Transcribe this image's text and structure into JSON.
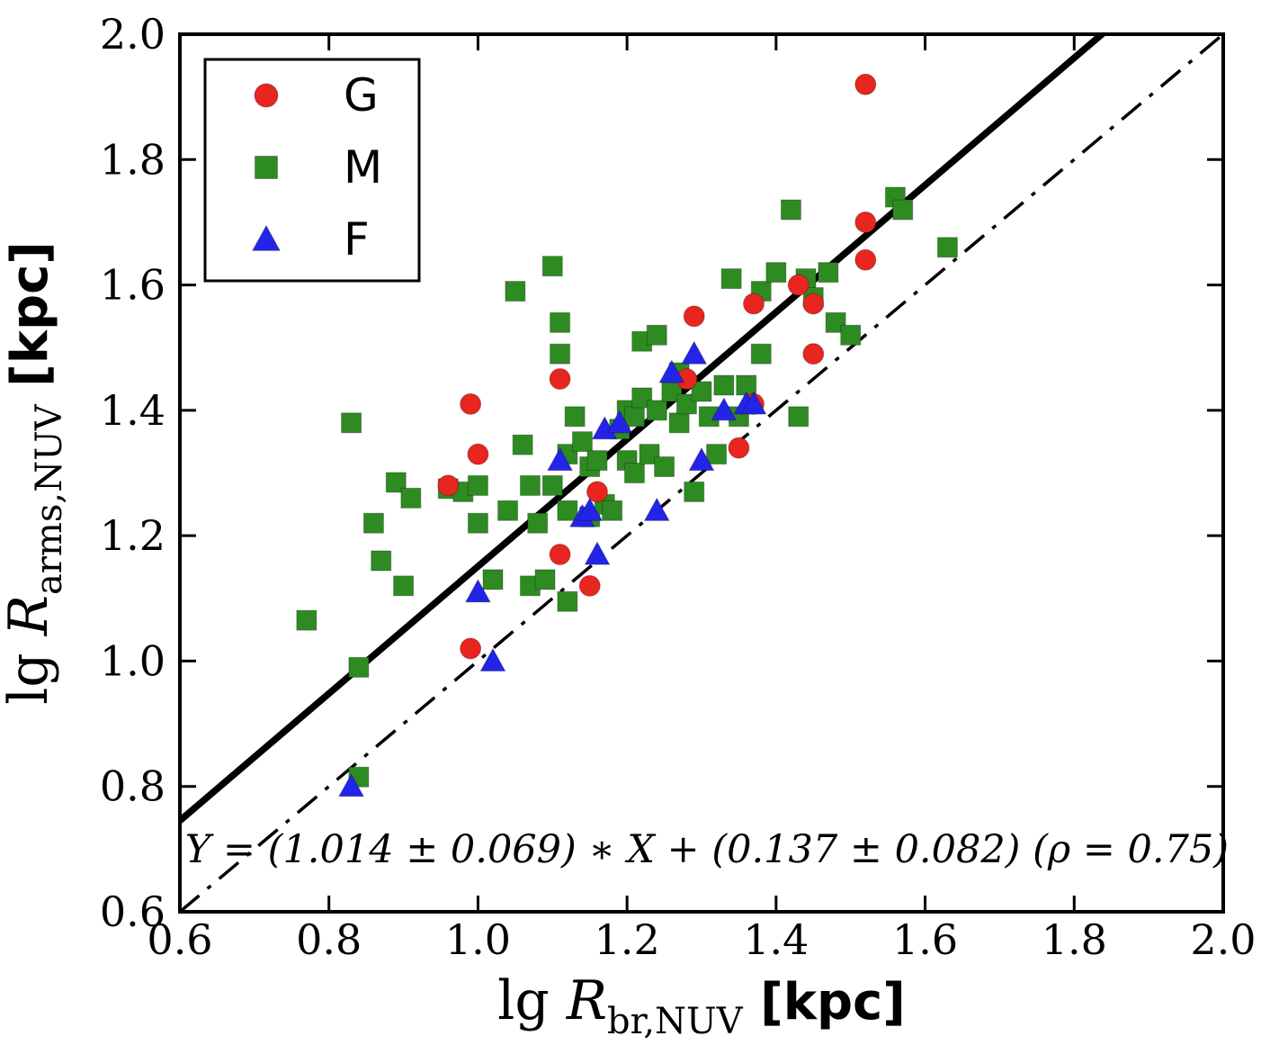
{
  "figure": {
    "background": "#ffffff",
    "frame_color": "#000000"
  },
  "chart_data": {
    "type": "scatter",
    "title": "",
    "xlabel_parts": {
      "prefix": "lg",
      "symbol": "R",
      "subscript": "br,NUV",
      "unit": "[kpc]"
    },
    "ylabel_parts": {
      "prefix": "lg",
      "symbol": "R",
      "subscript": "arms,NUV",
      "unit": "[kpc]"
    },
    "xlim": [
      0.6,
      2.0
    ],
    "ylim": [
      0.6,
      2.0
    ],
    "xticks": [
      0.6,
      0.8,
      1.0,
      1.2,
      1.4,
      1.6,
      1.8,
      2.0
    ],
    "yticks": [
      0.6,
      0.8,
      1.0,
      1.2,
      1.4,
      1.6,
      1.8,
      2.0
    ],
    "grid": false,
    "legend": {
      "position": "top-left",
      "entries": [
        {
          "label": "G",
          "marker": "circle",
          "color": "#e8251f"
        },
        {
          "label": "M",
          "marker": "square",
          "color": "#2e8b22"
        },
        {
          "label": "F",
          "marker": "triangle",
          "color": "#2424e8"
        }
      ]
    },
    "fit_line": {
      "slope": 1.014,
      "intercept": 0.137,
      "style": "solid",
      "color": "#000000"
    },
    "identity_line": {
      "slope": 1.0,
      "intercept": 0.0,
      "style": "dash-dot",
      "color": "#000000"
    },
    "annotation": "Y = (1.014 ± 0.069) ∗ X + (0.137 ± 0.082)  (ρ = 0.75)",
    "series": [
      {
        "name": "G",
        "marker": "circle",
        "color": "#e8251f",
        "points": [
          [
            0.96,
            1.28
          ],
          [
            0.99,
            1.02
          ],
          [
            0.99,
            1.41
          ],
          [
            1.0,
            1.33
          ],
          [
            1.11,
            1.17
          ],
          [
            1.11,
            1.45
          ],
          [
            1.15,
            1.12
          ],
          [
            1.16,
            1.27
          ],
          [
            1.28,
            1.45
          ],
          [
            1.29,
            1.55
          ],
          [
            1.35,
            1.34
          ],
          [
            1.37,
            1.41
          ],
          [
            1.37,
            1.57
          ],
          [
            1.43,
            1.6
          ],
          [
            1.45,
            1.49
          ],
          [
            1.45,
            1.57
          ],
          [
            1.52,
            1.64
          ],
          [
            1.52,
            1.7
          ],
          [
            1.52,
            1.92
          ]
        ]
      },
      {
        "name": "M",
        "marker": "square",
        "color": "#2e8b22",
        "points": [
          [
            0.77,
            1.065
          ],
          [
            0.83,
            1.38
          ],
          [
            0.84,
            0.99
          ],
          [
            0.84,
            0.815
          ],
          [
            0.86,
            1.22
          ],
          [
            0.87,
            1.16
          ],
          [
            0.89,
            1.285
          ],
          [
            0.9,
            1.12
          ],
          [
            0.91,
            1.26
          ],
          [
            0.96,
            1.275
          ],
          [
            0.98,
            1.27
          ],
          [
            1.0,
            1.28
          ],
          [
            1.0,
            1.22
          ],
          [
            1.02,
            1.13
          ],
          [
            1.04,
            1.24
          ],
          [
            1.05,
            1.59
          ],
          [
            1.06,
            1.345
          ],
          [
            1.07,
            1.28
          ],
          [
            1.07,
            1.12
          ],
          [
            1.08,
            1.22
          ],
          [
            1.09,
            1.13
          ],
          [
            1.1,
            1.63
          ],
          [
            1.1,
            1.28
          ],
          [
            1.11,
            1.54
          ],
          [
            1.11,
            1.49
          ],
          [
            1.12,
            1.33
          ],
          [
            1.12,
            1.24
          ],
          [
            1.12,
            1.095
          ],
          [
            1.13,
            1.39
          ],
          [
            1.14,
            1.35
          ],
          [
            1.15,
            1.31
          ],
          [
            1.15,
            1.23
          ],
          [
            1.16,
            1.32
          ],
          [
            1.17,
            1.25
          ],
          [
            1.18,
            1.24
          ],
          [
            1.19,
            1.37
          ],
          [
            1.2,
            1.4
          ],
          [
            1.2,
            1.32
          ],
          [
            1.21,
            1.39
          ],
          [
            1.21,
            1.3
          ],
          [
            1.22,
            1.51
          ],
          [
            1.22,
            1.42
          ],
          [
            1.23,
            1.33
          ],
          [
            1.24,
            1.52
          ],
          [
            1.24,
            1.4
          ],
          [
            1.25,
            1.31
          ],
          [
            1.26,
            1.43
          ],
          [
            1.27,
            1.46
          ],
          [
            1.27,
            1.38
          ],
          [
            1.28,
            1.41
          ],
          [
            1.29,
            1.27
          ],
          [
            1.3,
            1.43
          ],
          [
            1.31,
            1.39
          ],
          [
            1.32,
            1.33
          ],
          [
            1.33,
            1.44
          ],
          [
            1.34,
            1.61
          ],
          [
            1.35,
            1.39
          ],
          [
            1.36,
            1.44
          ],
          [
            1.38,
            1.59
          ],
          [
            1.38,
            1.49
          ],
          [
            1.4,
            1.62
          ],
          [
            1.42,
            1.72
          ],
          [
            1.43,
            1.39
          ],
          [
            1.44,
            1.61
          ],
          [
            1.45,
            1.58
          ],
          [
            1.47,
            1.62
          ],
          [
            1.48,
            1.54
          ],
          [
            1.5,
            1.52
          ],
          [
            1.56,
            1.74
          ],
          [
            1.57,
            1.72
          ],
          [
            1.63,
            1.66
          ]
        ]
      },
      {
        "name": "F",
        "marker": "triangle",
        "color": "#2424e8",
        "points": [
          [
            0.83,
            0.8
          ],
          [
            1.0,
            1.11
          ],
          [
            1.02,
            1.0
          ],
          [
            1.11,
            1.32
          ],
          [
            1.14,
            1.23
          ],
          [
            1.15,
            1.24
          ],
          [
            1.16,
            1.17
          ],
          [
            1.17,
            1.37
          ],
          [
            1.19,
            1.38
          ],
          [
            1.24,
            1.24
          ],
          [
            1.26,
            1.46
          ],
          [
            1.29,
            1.49
          ],
          [
            1.3,
            1.32
          ],
          [
            1.33,
            1.4
          ],
          [
            1.36,
            1.41
          ],
          [
            1.37,
            1.41
          ]
        ]
      }
    ]
  }
}
